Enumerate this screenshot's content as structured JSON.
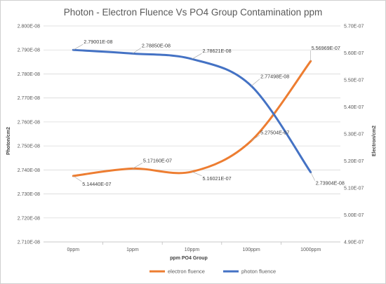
{
  "chart_data": {
    "type": "line",
    "title": "Photon - Electron Fluence Vs PO4 Group Contamination ppm",
    "xlabel": "ppm PO4 Group",
    "ylabel": "Photon/cm2",
    "y2label": "Electron/cm2",
    "categories": [
      "0ppm",
      "1ppm",
      "10ppm",
      "100ppm",
      "1000ppm"
    ],
    "ylim": [
      2.71e-08,
      2.8e-08
    ],
    "y2lim": [
      4.9e-07,
      5.7e-07
    ],
    "y_ticks": [
      "2.710E-08",
      "2.720E-08",
      "2.730E-08",
      "2.740E-08",
      "2.750E-08",
      "2.760E-08",
      "2.770E-08",
      "2.780E-08",
      "2.790E-08",
      "2.800E-08"
    ],
    "y2_ticks": [
      "4.90E-07",
      "5.00E-07",
      "5.10E-07",
      "5.20E-07",
      "5.30E-07",
      "5.40E-07",
      "5.50E-07",
      "5.60E-07",
      "5.70E-07"
    ],
    "grid": true,
    "legend_position": "bottom",
    "series": [
      {
        "name": "electron fluence",
        "axis": "right",
        "color": "#ED7D31",
        "values": [
          5.1444e-07,
          5.1716e-07,
          5.16021e-07,
          5.27504e-07,
          5.56969e-07
        ],
        "labels": [
          "5.14440E-07",
          "5.17160E-07",
          "5.16021E-07",
          "5.27504E-07",
          "5.56969E-07"
        ]
      },
      {
        "name": "photon fluence",
        "axis": "left",
        "color": "#4472C4",
        "values": [
          2.79001e-08,
          2.7885e-08,
          2.78621e-08,
          2.77498e-08,
          2.73904e-08
        ],
        "labels": [
          "2.79001E-08",
          "2.78850E-08",
          "2.78621E-08",
          "2.77498E-08",
          "2.73904E-08"
        ]
      }
    ]
  }
}
